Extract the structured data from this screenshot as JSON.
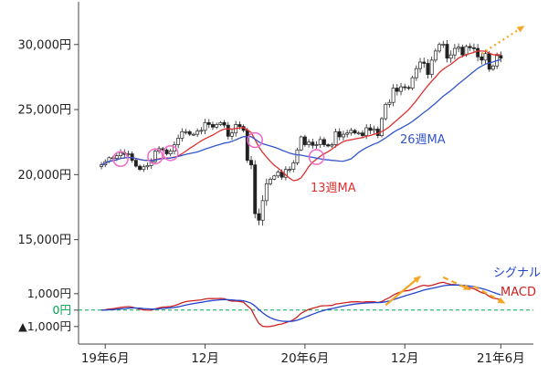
{
  "chart_data": {
    "type": "candlestick",
    "period": "weekly",
    "x_axis": {
      "ticks": [
        {
          "week": 1,
          "label": "19年6月"
        },
        {
          "week": 27,
          "label": "12月"
        },
        {
          "week": 53,
          "label": "20年6月"
        },
        {
          "week": 79,
          "label": "12月"
        },
        {
          "week": 104,
          "label": "21年6月"
        }
      ]
    },
    "price_axis": {
      "range": [
        12800,
        33000
      ],
      "ticks": [
        {
          "price": 30000,
          "label": "30,000円"
        },
        {
          "price": 25000,
          "label": "25,000円"
        },
        {
          "price": 20000,
          "label": "20,000円"
        },
        {
          "price": 15000,
          "label": "15,000円"
        }
      ]
    },
    "weekly_closes": [
      20750,
      21000,
      21300,
      21250,
      21450,
      21700,
      21550,
      21600,
      21100,
      20650,
      20400,
      20600,
      20700,
      21000,
      21800,
      22000,
      21900,
      21600,
      21800,
      22300,
      22800,
      23300,
      23300,
      23100,
      23100,
      23350,
      23400,
      24000,
      23850,
      23650,
      23850,
      24000,
      23800,
      22950,
      23200,
      23850,
      23700,
      23400,
      21100,
      20750,
      17000,
      16500,
      18000,
      19300,
      19650,
      19900,
      20200,
      19800,
      20400,
      20400,
      20900,
      21900,
      22900,
      22300,
      22500,
      22250,
      22300,
      22700,
      22300,
      22200,
      22300,
      23300,
      22900,
      23100,
      23200,
      23400,
      23200,
      23200,
      23000,
      23600,
      23400,
      23500,
      23000,
      24300,
      25400,
      25550,
      26650,
      26400,
      26750,
      26700,
      26650,
      27450,
      28150,
      28650,
      28550,
      27700,
      28800,
      29500,
      30000,
      30020,
      28950,
      29200,
      29700,
      29800,
      29200,
      29850,
      29750,
      29700,
      29050,
      28800,
      29300,
      28100,
      28350,
      29150,
      28950
    ],
    "candle_colors": {
      "up_fill": "#ffffff",
      "down_fill": "#222222",
      "stroke": "#222222"
    },
    "overlays": [
      {
        "name": "13週MA",
        "type": "sma",
        "window": 13,
        "color": "#e03131"
      },
      {
        "name": "26週MA",
        "type": "sma",
        "window": 26,
        "color": "#3355cc"
      }
    ],
    "markers": {
      "color": "#f06ec7",
      "crossover_circles": [
        {
          "week": 5,
          "price": 21200
        },
        {
          "week": 14,
          "price": 21400
        },
        {
          "week": 18,
          "price": 21650
        },
        {
          "week": 40,
          "price": 22650
        },
        {
          "week": 56,
          "price": 21350
        }
      ]
    },
    "macd_panel": {
      "range": [
        -1900,
        2100
      ],
      "zero_line_color": "#00a651",
      "ticks": [
        {
          "value": 1000,
          "label": "1,000円",
          "color": "#222222"
        },
        {
          "value": 0,
          "label": "0円",
          "color": "#00a651"
        },
        {
          "value": -1000,
          "label": "▲1,000円",
          "color": "#222222"
        }
      ],
      "macd": {
        "label": "MACD",
        "color": "#cc2222",
        "fast": 12,
        "slow": 26
      },
      "signal": {
        "label": "シグナル",
        "color": "#2244cc",
        "window": 9
      }
    },
    "annotations": {
      "arrow_color": "#f5a623",
      "arrows": [
        {
          "panel": "main",
          "style": "dotted",
          "from": {
            "week": 99,
            "price": 29300
          },
          "to": {
            "week": 110,
            "price": 31400
          }
        },
        {
          "panel": "macd",
          "style": "solid",
          "from": {
            "week": 74,
            "value": 300
          },
          "to": {
            "week": 83,
            "value": 2050
          }
        },
        {
          "panel": "macd",
          "style": "dashed",
          "from": {
            "week": 89,
            "value": 2000
          },
          "to": {
            "week": 96,
            "value": 1250
          }
        },
        {
          "panel": "macd",
          "style": "dashed",
          "from": {
            "week": 97,
            "value": 1450
          },
          "to": {
            "week": 105,
            "value": 420
          }
        }
      ]
    }
  }
}
